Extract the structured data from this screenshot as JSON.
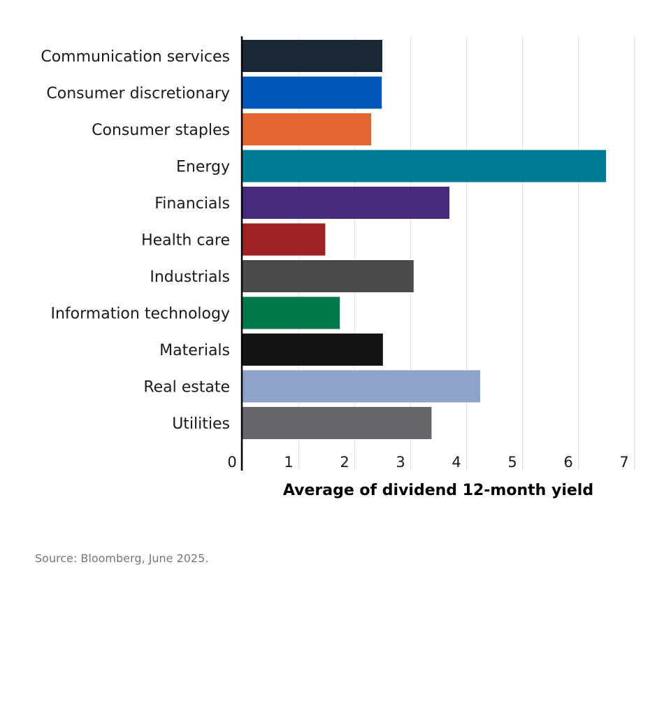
{
  "chart_data": {
    "type": "bar",
    "orientation": "horizontal",
    "categories": [
      "Communication services",
      "Consumer discretionary",
      "Consumer staples",
      "Energy",
      "Financials",
      "Health care",
      "Industrials",
      "Information technology",
      "Materials",
      "Real estate",
      "Utilities"
    ],
    "values": [
      2.5,
      2.49,
      2.3,
      6.5,
      3.7,
      1.48,
      3.06,
      1.74,
      2.51,
      4.25,
      3.38
    ],
    "colors": [
      "#1b2837",
      "#0056b8",
      "#e3652f",
      "#007b93",
      "#472a7a",
      "#9d2226",
      "#4a4a4a",
      "#00784a",
      "#141414",
      "#8ea3c8",
      "#66666a"
    ],
    "xlabel": "Average of dividend 12-month yield",
    "ylabel": "",
    "xlim": [
      0,
      7
    ],
    "xticks": [
      "0",
      "1",
      "2",
      "3",
      "4",
      "5",
      "6",
      "7"
    ],
    "grid": true
  },
  "source": "Source: Bloomberg, June 2025."
}
